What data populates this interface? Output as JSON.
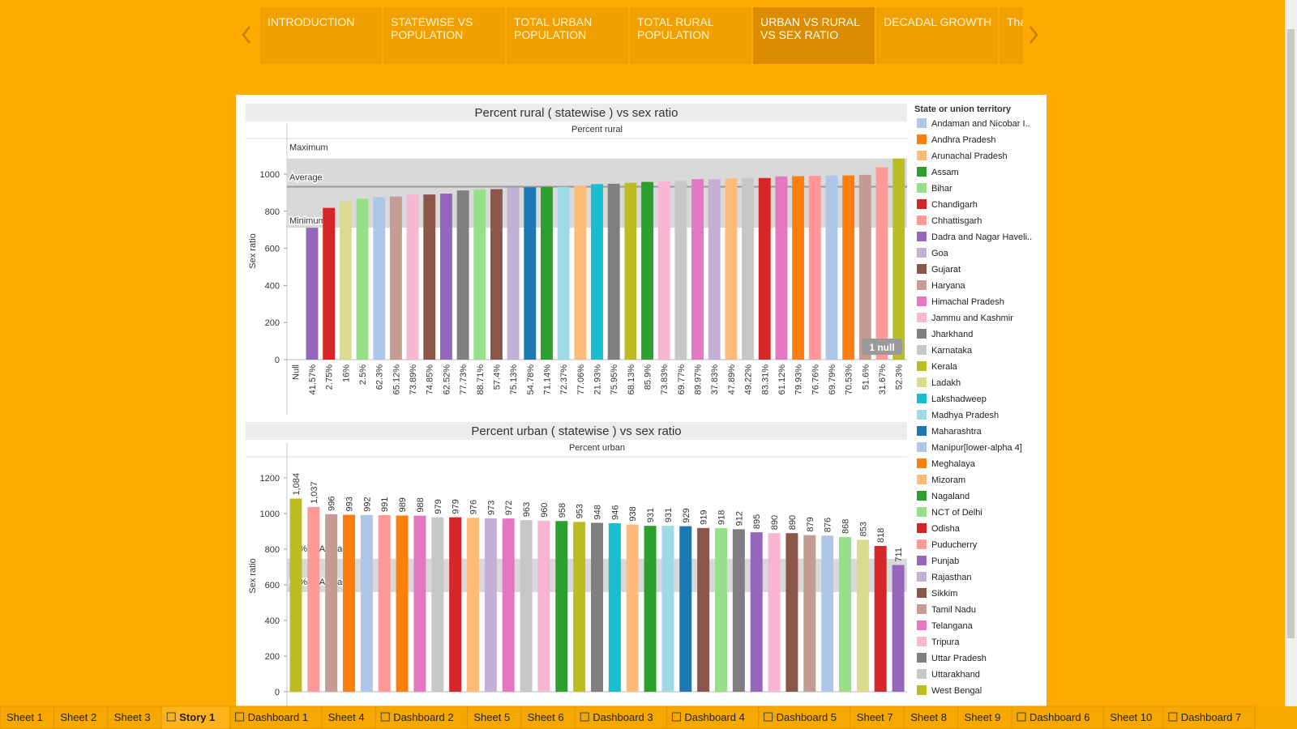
{
  "story_points": [
    "INTRODUCTION",
    "STATEWISE VS POPULATION",
    "TOTAL URBAN POPULATION",
    "TOTAL RURAL POPULATION",
    "URBAN VS RURAL VS SEX RATIO",
    "DECADAL GROWTH",
    "Tha"
  ],
  "active_story_point": 4,
  "chart_data": [
    {
      "type": "bar",
      "title": "Percent rural ( statewise ) vs sex ratio",
      "header": "Percent rural",
      "y_label": "Sex ratio",
      "categories": [
        "Null",
        "41.57%",
        "2.75%",
        "16%",
        "2.5%",
        "62.3%",
        "65.12%",
        "73.89%",
        "74.85%",
        "62.52%",
        "77.73%",
        "88.71%",
        "57.4%",
        "75.13%",
        "54.78%",
        "71.14%",
        "72.37%",
        "77.06%",
        "21.93%",
        "75.95%",
        "68.13%",
        "85.9%",
        "73.83%",
        "69.77%",
        "89.97%",
        "37.83%",
        "47.89%",
        "49.22%",
        "83.31%",
        "61.12%",
        "79.93%",
        "76.76%",
        "69.79%",
        "70.53%",
        "51.6%",
        "31.67%",
        "52.3%"
      ],
      "values": [
        null,
        711,
        818,
        853,
        868,
        876,
        879,
        890,
        890,
        895,
        912,
        918,
        919,
        928,
        929,
        931,
        931,
        938,
        946,
        948,
        953,
        958,
        960,
        963,
        973,
        972,
        976,
        979,
        979,
        988,
        989,
        991,
        992,
        993,
        996,
        1037,
        1084
      ],
      "colors": [
        null,
        "#9467bd",
        "#d62728",
        "#dbdb8d",
        "#98df8a",
        "#aec7e8",
        "#c49c94",
        "#f7b6d2",
        "#8c564b",
        "#9467bd",
        "#7f7f7f",
        "#98df8a",
        "#8c564b",
        "#c5b0d5",
        "#1f77b4",
        "#2ca02c",
        "#9edae5",
        "#ffbb78",
        "#17becf",
        "#7f7f7f",
        "#bcbd22",
        "#2ca02c",
        "#f7b6d2",
        "#c7c7c7",
        "#e377c2",
        "#c5b0d5",
        "#ffbb78",
        "#c7c7c7",
        "#d62728",
        "#e377c2",
        "#ff7f0e",
        "#ff9896",
        "#aec7e8",
        "#ff7f0e",
        "#c49c94",
        "#ff9896",
        "#bcbd22"
      ],
      "ylim": [
        0,
        1170
      ],
      "yticks": [
        0,
        200,
        400,
        600,
        800,
        1000
      ],
      "reference_lines": [
        {
          "label": "Maximum",
          "value": 1084
        },
        {
          "label": "Average",
          "value": 932
        },
        {
          "label": "Minimum",
          "value": 711
        }
      ],
      "annotation": "1 null"
    },
    {
      "type": "bar",
      "title": "Percent urban ( statewise ) vs sex ratio",
      "header": "Percent urban",
      "y_label": "Sex ratio",
      "values": [
        1084,
        1037,
        996,
        993,
        992,
        991,
        989,
        988,
        979,
        979,
        976,
        973,
        972,
        963,
        960,
        958,
        953,
        948,
        946,
        938,
        931,
        931,
        929,
        919,
        918,
        912,
        895,
        890,
        890,
        879,
        876,
        868,
        853,
        818,
        711
      ],
      "value_labels": [
        "1,084",
        "1,037",
        "996",
        "993",
        "992",
        "991",
        "989",
        "988",
        "979",
        "979",
        "976",
        "973",
        "972",
        "963",
        "960",
        "958",
        "953",
        "948",
        "946",
        "938",
        "931",
        "931",
        "929",
        "919",
        "918",
        "912",
        "895",
        "890",
        "890",
        "879",
        "876",
        "868",
        "853",
        "818",
        "711"
      ],
      "colors": [
        "#bcbd22",
        "#ff9896",
        "#c49c94",
        "#ff7f0e",
        "#aec7e8",
        "#ff9896",
        "#ff7f0e",
        "#e377c2",
        "#c7c7c7",
        "#d62728",
        "#ffbb78",
        "#c5b0d5",
        "#e377c2",
        "#c7c7c7",
        "#f7b6d2",
        "#2ca02c",
        "#bcbd22",
        "#7f7f7f",
        "#17becf",
        "#ffbb78",
        "#2ca02c",
        "#9edae5",
        "#1f77b4",
        "#8c564b",
        "#98df8a",
        "#7f7f7f",
        "#9467bd",
        "#f7b6d2",
        "#8c564b",
        "#c49c94",
        "#aec7e8",
        "#98df8a",
        "#dbdb8d",
        "#d62728",
        "#9467bd"
      ],
      "ylim": [
        0,
        1300
      ],
      "yticks": [
        0,
        200,
        400,
        600,
        800,
        1000,
        1200
      ],
      "reference_lines": [
        {
          "label": "80% of Average",
          "value": 746
        },
        {
          "label": "60% of Average",
          "value": 559
        }
      ]
    }
  ],
  "legend": {
    "title": "State or union territory",
    "items": [
      {
        "name": "Andaman and Nicobar I..",
        "color": "#aec7e8"
      },
      {
        "name": "Andhra Pradesh",
        "color": "#ff7f0e"
      },
      {
        "name": "Arunachal Pradesh",
        "color": "#ffbb78"
      },
      {
        "name": "Assam",
        "color": "#2ca02c"
      },
      {
        "name": "Bihar",
        "color": "#98df8a"
      },
      {
        "name": "Chandigarh",
        "color": "#d62728"
      },
      {
        "name": "Chhattisgarh",
        "color": "#ff9896"
      },
      {
        "name": "Dadra and Nagar Haveli..",
        "color": "#9467bd"
      },
      {
        "name": "Goa",
        "color": "#c5b0d5"
      },
      {
        "name": "Gujarat",
        "color": "#8c564b"
      },
      {
        "name": "Haryana",
        "color": "#c49c94"
      },
      {
        "name": "Himachal Pradesh",
        "color": "#e377c2"
      },
      {
        "name": "Jammu and Kashmir",
        "color": "#f7b6d2"
      },
      {
        "name": "Jharkhand",
        "color": "#7f7f7f"
      },
      {
        "name": "Karnataka",
        "color": "#c7c7c7"
      },
      {
        "name": "Kerala",
        "color": "#bcbd22"
      },
      {
        "name": "Ladakh",
        "color": "#dbdb8d"
      },
      {
        "name": "Lakshadweep",
        "color": "#17becf"
      },
      {
        "name": "Madhya Pradesh",
        "color": "#9edae5"
      },
      {
        "name": "Maharashtra",
        "color": "#1f77b4"
      },
      {
        "name": "Manipur[lower-alpha 4]",
        "color": "#aec7e8"
      },
      {
        "name": "Meghalaya",
        "color": "#ff7f0e"
      },
      {
        "name": "Mizoram",
        "color": "#ffbb78"
      },
      {
        "name": "Nagaland",
        "color": "#2ca02c"
      },
      {
        "name": "NCT of Delhi",
        "color": "#98df8a"
      },
      {
        "name": "Odisha",
        "color": "#d62728"
      },
      {
        "name": "Puducherry",
        "color": "#ff9896"
      },
      {
        "name": "Punjab",
        "color": "#9467bd"
      },
      {
        "name": "Rajasthan",
        "color": "#c5b0d5"
      },
      {
        "name": "Sikkim",
        "color": "#8c564b"
      },
      {
        "name": "Tamil Nadu",
        "color": "#c49c94"
      },
      {
        "name": "Telangana",
        "color": "#e377c2"
      },
      {
        "name": "Tripura",
        "color": "#f7b6d2"
      },
      {
        "name": "Uttar Pradesh",
        "color": "#7f7f7f"
      },
      {
        "name": "Uttarakhand",
        "color": "#c7c7c7"
      },
      {
        "name": "West Bengal",
        "color": "#bcbd22"
      }
    ]
  },
  "sheet_tabs": [
    "Sheet 1",
    "Sheet 2",
    "Sheet 3",
    "Story 1",
    "Dashboard 1",
    "Sheet 4",
    "Dashboard 2",
    "Sheet 5",
    "Sheet 6",
    "Dashboard 3",
    "Dashboard 4",
    "Dashboard 5",
    "Sheet 7",
    "Sheet 8",
    "Sheet 9",
    "Dashboard 6",
    "Sheet 10",
    "Dashboard 7"
  ],
  "active_sheet_tab": 3
}
